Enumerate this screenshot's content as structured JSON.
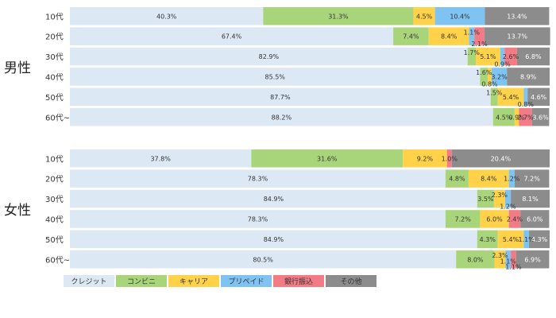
{
  "chart_data": {
    "type": "bar",
    "orientation": "horizontal",
    "stacked": true,
    "percent": true,
    "groups": [
      {
        "name": "男性",
        "categories": [
          "10代",
          "20代",
          "30代",
          "40代",
          "50代",
          "60代~"
        ],
        "series": [
          {
            "name": "クレジット",
            "values": [
              40.3,
              67.4,
              82.9,
              85.5,
              87.7,
              88.2
            ]
          },
          {
            "name": "コンビニ",
            "values": [
              31.3,
              7.4,
              1.7,
              1.6,
              1.5,
              4.5
            ]
          },
          {
            "name": "キャリア",
            "values": [
              4.5,
              8.4,
              5.1,
              0.8,
              5.4,
              0.9
            ]
          },
          {
            "name": "プリペイド",
            "values": [
              10.4,
              1.1,
              0.9,
              3.2,
              0.8,
              0.0
            ]
          },
          {
            "name": "銀行振込",
            "values": [
              0.0,
              2.1,
              2.6,
              0.0,
              0.0,
              2.7
            ]
          },
          {
            "name": "その他",
            "values": [
              13.4,
              13.7,
              6.8,
              8.9,
              4.6,
              3.6
            ]
          }
        ]
      },
      {
        "name": "女性",
        "categories": [
          "10代",
          "20代",
          "30代",
          "40代",
          "50代",
          "60代~"
        ],
        "series": [
          {
            "name": "クレジット",
            "values": [
              37.8,
              78.3,
              84.9,
              78.3,
              84.9,
              80.5
            ]
          },
          {
            "name": "コンビニ",
            "values": [
              31.6,
              4.8,
              3.5,
              7.2,
              4.3,
              8.0
            ]
          },
          {
            "name": "キャリア",
            "values": [
              9.2,
              8.4,
              2.3,
              6.0,
              5.4,
              2.3
            ]
          },
          {
            "name": "プリペイド",
            "values": [
              0.0,
              1.2,
              1.2,
              0.0,
              1.1,
              1.1
            ]
          },
          {
            "name": "銀行振込",
            "values": [
              1.0,
              0.0,
              0.0,
              2.4,
              0.0,
              1.1
            ]
          },
          {
            "name": "その他",
            "values": [
              20.4,
              7.2,
              8.1,
              6.0,
              4.3,
              6.9
            ]
          }
        ]
      }
    ],
    "labels": [
      [
        [
          {
            "s": 0,
            "text": "40.3%"
          },
          {
            "s": 1,
            "text": "31.3%"
          },
          {
            "s": 2,
            "text": "4.5%"
          },
          {
            "s": 3,
            "text": "10.4%"
          },
          {
            "s": 5,
            "text": "13.4%"
          }
        ],
        [
          {
            "s": 0,
            "text": "67.4%"
          },
          {
            "s": 1,
            "text": "7.4%"
          },
          {
            "s": 2,
            "text": "8.4%"
          },
          {
            "s": 3,
            "text": "1.1%"
          },
          {
            "s": 4,
            "text": "2.1%"
          },
          {
            "s": 5,
            "text": "13.7%"
          }
        ],
        [
          {
            "s": 0,
            "text": "82.9%"
          },
          {
            "s": 1,
            "text": "1.7%"
          },
          {
            "s": 2,
            "text": "5.1%"
          },
          {
            "s": 3,
            "text": "0.9%"
          },
          {
            "s": 4,
            "text": "2.6%"
          },
          {
            "s": 5,
            "text": "6.8%"
          }
        ],
        [
          {
            "s": 0,
            "text": "85.5%"
          },
          {
            "s": 1,
            "text": "1.6%"
          },
          {
            "s": 2,
            "text": "0.8%"
          },
          {
            "s": 3,
            "text": "3.2%"
          },
          {
            "s": 5,
            "text": "8.9%"
          }
        ],
        [
          {
            "s": 0,
            "text": "87.7%"
          },
          {
            "s": 1,
            "text": "1.5%"
          },
          {
            "s": 2,
            "text": "5.4%"
          },
          {
            "s": 3,
            "text": "0.8%"
          },
          {
            "s": 5,
            "text": "4.6%"
          }
        ],
        [
          {
            "s": 0,
            "text": "88.2%"
          },
          {
            "s": 1,
            "text": "4.5%"
          },
          {
            "s": 2,
            "text": "0.9%"
          },
          {
            "s": 4,
            "text": "2.7%"
          },
          {
            "s": 5,
            "text": "3.6%"
          }
        ]
      ],
      [
        [
          {
            "s": 0,
            "text": "37.8%"
          },
          {
            "s": 1,
            "text": "31.6%"
          },
          {
            "s": 2,
            "text": "9.2%"
          },
          {
            "s": 4,
            "text": "1.0%"
          },
          {
            "s": 5,
            "text": "20.4%"
          }
        ],
        [
          {
            "s": 0,
            "text": "78.3%"
          },
          {
            "s": 1,
            "text": "4.8%"
          },
          {
            "s": 2,
            "text": "8.4%"
          },
          {
            "s": 3,
            "text": "1.2%"
          },
          {
            "s": 5,
            "text": "7.2%"
          }
        ],
        [
          {
            "s": 0,
            "text": "84.9%"
          },
          {
            "s": 1,
            "text": "3.5%"
          },
          {
            "s": 2,
            "text": "2.3%"
          },
          {
            "s": 3,
            "text": "1.2%"
          },
          {
            "s": 5,
            "text": "8.1%"
          }
        ],
        [
          {
            "s": 0,
            "text": "78.3%"
          },
          {
            "s": 1,
            "text": "7.2%"
          },
          {
            "s": 2,
            "text": "6.0%"
          },
          {
            "s": 4,
            "text": "2.4%"
          },
          {
            "s": 5,
            "text": "6.0%"
          }
        ],
        [
          {
            "s": 0,
            "text": "84.9%"
          },
          {
            "s": 1,
            "text": "4.3%"
          },
          {
            "s": 2,
            "text": "5.4%"
          },
          {
            "s": 3,
            "text": "1.1%"
          },
          {
            "s": 5,
            "text": "4.3%"
          }
        ],
        [
          {
            "s": 0,
            "text": "80.5%"
          },
          {
            "s": 1,
            "text": "8.0%"
          },
          {
            "s": 2,
            "text": "2.3%"
          },
          {
            "s": 3,
            "text": "1.1%"
          },
          {
            "s": 4,
            "text": "1.1%"
          },
          {
            "s": 5,
            "text": "6.9%"
          }
        ]
      ]
    ],
    "colors": {
      "クレジット": "#dce8f4",
      "コンビニ": "#a9d57a",
      "キャリア": "#ffd24a",
      "プリペイド": "#7ec3f2",
      "銀行振込": "#f27b85",
      "その他": "#8c8c8c"
    },
    "xlim": [
      0,
      100
    ],
    "grid": false,
    "legend_position": "bottom-left"
  }
}
